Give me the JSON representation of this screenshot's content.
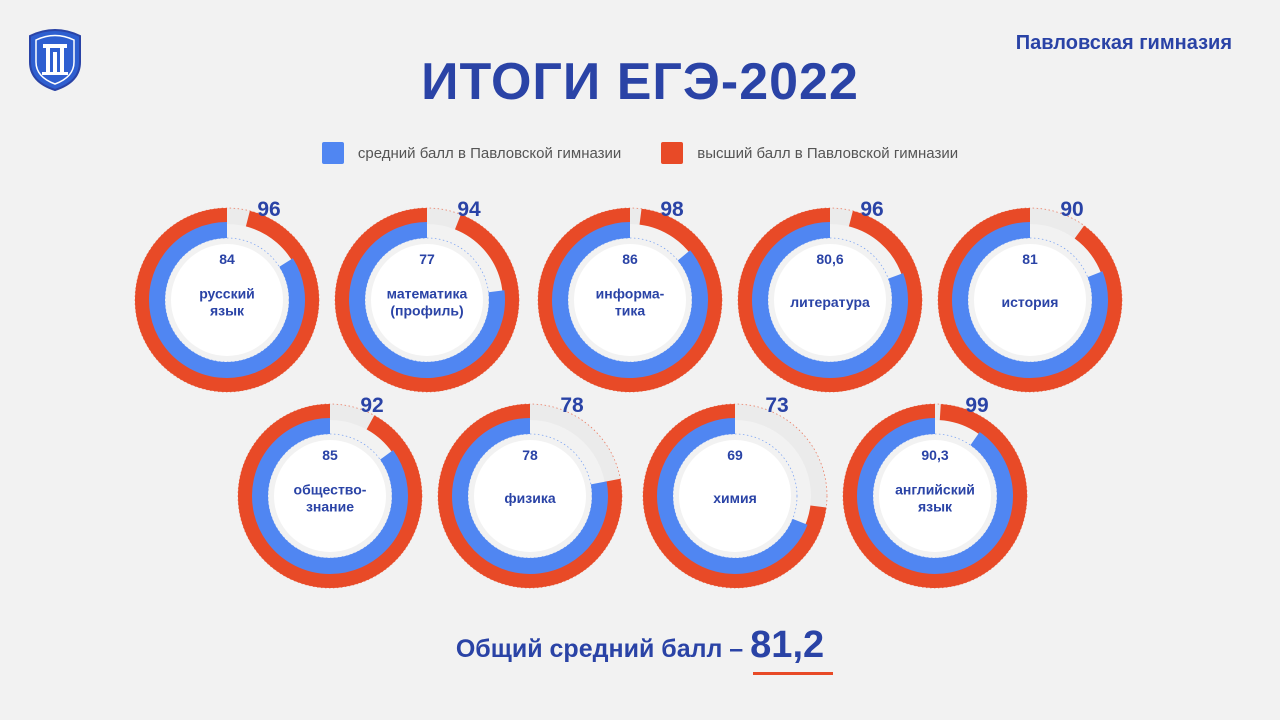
{
  "header": {
    "school_name": "Павловская гимназия",
    "title": "ИТОГИ ЕГЭ-2022"
  },
  "legend": [
    {
      "label": "средний балл в Павловской гимназии",
      "color": "#5086f2"
    },
    {
      "label": "высший балл в Павловской гимназии",
      "color": "#e84a27"
    }
  ],
  "footer": {
    "label": "Общий средний балл –",
    "value": "81,2"
  },
  "chart_data": {
    "type": "donut",
    "scale_max": 100,
    "series": [
      {
        "name": "средний балл в Павловской гимназии",
        "color": "#5086f2"
      },
      {
        "name": "высший балл в Павловской гимназии",
        "color": "#e84a27"
      }
    ],
    "subjects": [
      {
        "name": [
          "русский",
          "язык"
        ],
        "avg": 84,
        "avg_label": "84",
        "max": 96,
        "max_label": "96"
      },
      {
        "name": [
          "математика",
          "(профиль)"
        ],
        "avg": 77,
        "avg_label": "77",
        "max": 94,
        "max_label": "94"
      },
      {
        "name": [
          "информа-",
          "тика"
        ],
        "avg": 86,
        "avg_label": "86",
        "max": 98,
        "max_label": "98"
      },
      {
        "name": [
          "литература"
        ],
        "avg": 80.6,
        "avg_label": "80,6",
        "max": 96,
        "max_label": "96"
      },
      {
        "name": [
          "история"
        ],
        "avg": 81,
        "avg_label": "81",
        "max": 90,
        "max_label": "90"
      },
      {
        "name": [
          "общество-",
          "знание"
        ],
        "avg": 85,
        "avg_label": "85",
        "max": 92,
        "max_label": "92"
      },
      {
        "name": [
          "физика"
        ],
        "avg": 78,
        "avg_label": "78",
        "max": 78,
        "max_label": "78"
      },
      {
        "name": [
          "химия"
        ],
        "avg": 69,
        "avg_label": "69",
        "max": 73,
        "max_label": "73"
      },
      {
        "name": [
          "английский",
          "язык"
        ],
        "avg": 90.3,
        "avg_label": "90,3",
        "max": 99,
        "max_label": "99"
      }
    ]
  }
}
